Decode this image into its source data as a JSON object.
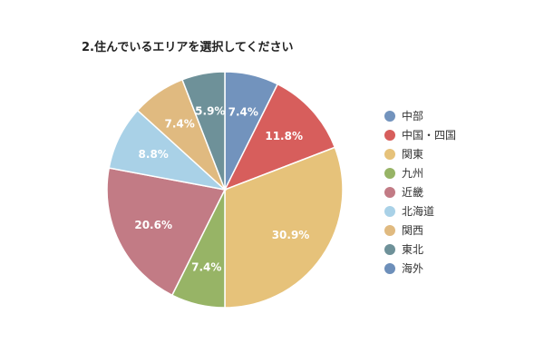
{
  "chart_data": {
    "type": "pie",
    "title": "2.住んでいるエリアを選択してください",
    "legend_position": "right",
    "slices": [
      {
        "label": "中部",
        "value": 7.4,
        "display": "7.4%",
        "color": "#7293bd"
      },
      {
        "label": "中国・四国",
        "value": 11.8,
        "display": "11.8%",
        "color": "#d75e5c"
      },
      {
        "label": "関東",
        "value": 30.9,
        "display": "30.9%",
        "color": "#e6c27a"
      },
      {
        "label": "九州",
        "value": 7.4,
        "display": "7.4%",
        "color": "#97b466"
      },
      {
        "label": "近畿",
        "value": 20.6,
        "display": "20.6%",
        "color": "#c27b85"
      },
      {
        "label": "北海道",
        "value": 8.8,
        "display": "8.8%",
        "color": "#a9d1e7"
      },
      {
        "label": "関西",
        "value": 7.4,
        "display": "7.4%",
        "color": "#e0ba80"
      },
      {
        "label": "東北",
        "value": 5.9,
        "display": "5.9%",
        "color": "#6e9199"
      },
      {
        "label": "海外",
        "value": 0,
        "display": "",
        "color": "#6d8fba"
      }
    ]
  }
}
